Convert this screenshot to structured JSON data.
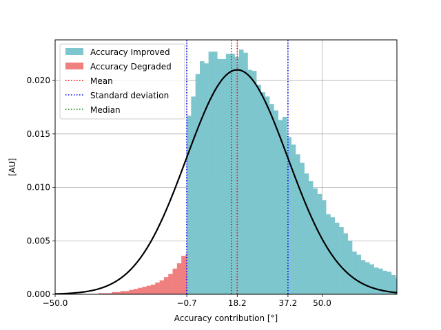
{
  "chart_data": {
    "type": "histogram",
    "xlabel": "Accuracy contribution [°]",
    "ylabel": "[AU]",
    "xlim": [
      -50.0,
      78.0
    ],
    "ylim": [
      0.0,
      0.0238
    ],
    "grid": true,
    "legend_position": "top-left",
    "xticks": [
      -50.0,
      -0.7,
      18.2,
      37.2,
      50.0
    ],
    "xtick_labels": [
      "−50.0",
      "−0.7",
      "18.2",
      "37.2",
      "50.0"
    ],
    "yticks": [
      0.0,
      0.005,
      0.01,
      0.015,
      0.02
    ],
    "ytick_labels": [
      "0.000",
      "0.005",
      "0.010",
      "0.015",
      "0.020"
    ],
    "stats": {
      "mean": 18.2,
      "median": 16.0,
      "std_low": -0.7,
      "std_high": 37.2
    },
    "series": [
      {
        "name": "Accuracy Improved",
        "color": "#7ec6ce",
        "kind": "histogram",
        "x_start": -0.7,
        "bin_width": 1.63,
        "values": [
          0.0167,
          0.0185,
          0.0206,
          0.0218,
          0.0216,
          0.0227,
          0.0227,
          0.022,
          0.022,
          0.0225,
          0.0225,
          0.0222,
          0.0229,
          0.0226,
          0.021,
          0.0209,
          0.0196,
          0.0189,
          0.0185,
          0.0178,
          0.0172,
          0.0163,
          0.0166,
          0.0147,
          0.014,
          0.0131,
          0.0123,
          0.0113,
          0.0106,
          0.0099,
          0.0094,
          0.0088,
          0.0075,
          0.0072,
          0.0067,
          0.0063,
          0.0057,
          0.005,
          0.004,
          0.0037,
          0.0032,
          0.003,
          0.0028,
          0.0025,
          0.0024,
          0.0022,
          0.0021,
          0.0018,
          0.0015,
          0.0012,
          0.001,
          0.0008,
          0.0005,
          0.0004,
          0.0004,
          0.0002
        ]
      },
      {
        "name": "Accuracy Degraded",
        "color": "#f08080",
        "kind": "histogram",
        "x_start": -50.0,
        "bin_width": 1.63,
        "values": [
          0.0,
          0.0,
          0.0,
          0.0,
          0.0,
          0.0,
          0.0,
          0.0,
          0.0,
          0.0,
          0.0001,
          0.0001,
          0.0001,
          0.0002,
          0.0002,
          0.0003,
          0.0003,
          0.0004,
          0.0005,
          0.0006,
          0.0007,
          0.0008,
          0.0009,
          0.0011,
          0.0013,
          0.0016,
          0.0019,
          0.0024,
          0.0029,
          0.0036,
          0.0038,
          0.0049,
          0.0058,
          0.0068,
          0.0087,
          0.0104,
          0.0128,
          0.0136,
          0.0147,
          0.0157,
          0.0167,
          0.0172,
          0.0187,
          0.0205
        ]
      },
      {
        "name": "Fitted normal",
        "color": "#000000",
        "kind": "curve",
        "mean": 18.2,
        "std": 19.0
      },
      {
        "name": "Mean",
        "color": "#ff0000",
        "kind": "vline",
        "x": 18.2
      },
      {
        "name": "Standard deviation",
        "color": "#0000ff",
        "kind": "vline",
        "x": [
          -0.7,
          37.2
        ]
      },
      {
        "name": "Median",
        "color": "#008000",
        "kind": "vline",
        "x": 16.0
      }
    ],
    "legend": [
      "Accuracy Improved",
      "Accuracy Degraded",
      "Mean",
      "Standard deviation",
      "Median"
    ]
  }
}
